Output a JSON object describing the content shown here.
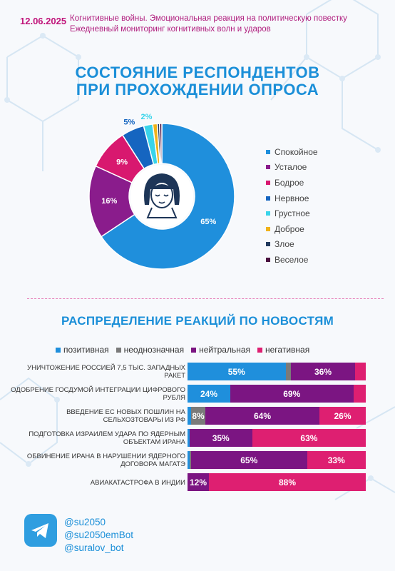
{
  "header": {
    "date": "12.06.2025",
    "line1": "Когнитивные войны. Эмоциональная реакция на политическую повестку",
    "line2": "Ежедневный мониторинг когнитивных волн и ударов"
  },
  "chart_data": [
    {
      "type": "pie",
      "title": "СОСТОЯНИЕ РЕСПОНДЕНТОВ ПРИ ПРОХОЖДЕНИИ ОПРОСА",
      "title_line1": "СОСТОЯНИЕ РЕСПОНДЕНТОВ",
      "title_line2": "ПРИ ПРОХОЖДЕНИИ ОПРОСА",
      "legend_position": "right",
      "categories": [
        "Спокойное",
        "Усталое",
        "Бодрое",
        "Нервное",
        "Грустное",
        "Доброе",
        "Злое",
        "Веселое"
      ],
      "values": [
        65,
        16,
        9,
        5,
        2,
        1,
        0.5,
        0.5
      ],
      "labels": [
        "65%",
        "16%",
        "9%",
        "5%",
        "2%",
        "",
        "",
        ""
      ],
      "colors": [
        "#1f8fdc",
        "#8a1c8c",
        "#d8186f",
        "#1565c0",
        "#39d4ea",
        "#f0b21a",
        "#223a5e",
        "#4a1040"
      ]
    },
    {
      "type": "bar",
      "orientation": "horizontal-stacked",
      "title": "РАСПРЕДЕЛЕНИЕ РЕАКЦИЙ ПО НОВОСТЯМ",
      "legend_position": "top",
      "categories": [
        "УНИЧТОЖЕНИЕ РОССИЕЙ 7,5 ТЫС. ЗАПАДНЫХ РАКЕТ",
        "ОДОБРЕНИЕ ГОСДУМОЙ ИНТЕГРАЦИИ ЦИФРОВОГО РУБЛЯ",
        "ВВЕДЕНИЕ ЕС НОВЫХ ПОШЛИН НА СЕЛЬХОЗТОВАРЫ ИЗ РФ",
        "ПОДГОТОВКА ИЗРАИЛЕМ УДАРА ПО ЯДЕРНЫМ ОБЪЕКТАМ ИРАНА",
        "ОБВИНЕНИЕ ИРАНА В НАРУШЕНИИ ЯДЕРНОГО ДОГОВОРА МАГАТЭ",
        "АВИАКАТАСТРОФА В ИНДИИ"
      ],
      "series": [
        {
          "name": "позитивная",
          "color": "#1f8fdc",
          "values": [
            55,
            24,
            2,
            1,
            1,
            0
          ],
          "labels": [
            "55%",
            "24%",
            "",
            "",
            "",
            ""
          ]
        },
        {
          "name": "неоднозначная",
          "color": "#7a7a7a",
          "values": [
            3,
            0,
            8,
            0,
            1,
            0
          ],
          "labels": [
            "",
            "",
            "8%",
            "",
            "",
            ""
          ]
        },
        {
          "name": "нейтральная",
          "color": "#7b1582",
          "values": [
            36,
            69,
            64,
            35,
            65,
            12
          ],
          "labels": [
            "36%",
            "69%",
            "64%",
            "35%",
            "65%",
            "12%"
          ]
        },
        {
          "name": "негативная",
          "color": "#de1f71",
          "values": [
            6,
            7,
            26,
            63,
            33,
            88
          ],
          "labels": [
            "",
            "",
            "26%",
            "63%",
            "33%",
            "88%"
          ]
        }
      ]
    }
  ],
  "footer": {
    "handles": [
      "@su2050",
      "@su2050emBot",
      "@suralov_bot"
    ]
  }
}
